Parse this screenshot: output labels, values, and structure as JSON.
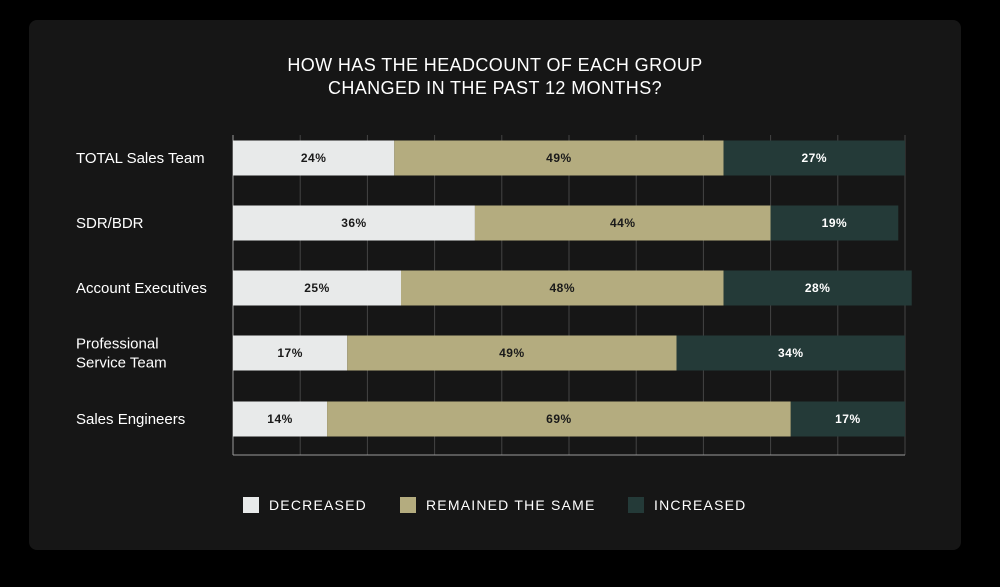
{
  "title_lines": [
    "HOW HAS THE HEADCOUNT OF EACH GROUP",
    "CHANGED IN THE PAST 12 MONTHS?"
  ],
  "colors": {
    "decreased": "#e8eaea",
    "remained": "#b4ac7f",
    "increased": "#243a38",
    "grid": "#444444",
    "label_dark": "#1a1a1a",
    "label_light": "#ffffff"
  },
  "chart_data": {
    "type": "bar",
    "orientation": "horizontal",
    "stacked": true,
    "title": "HOW HAS THE HEADCOUNT OF EACH GROUP CHANGED IN THE PAST 12 MONTHS?",
    "categories": [
      [
        "TOTAL Sales Team"
      ],
      [
        "SDR/BDR"
      ],
      [
        "Account Executives"
      ],
      [
        "Professional",
        "Service Team"
      ],
      [
        "Sales Engineers"
      ]
    ],
    "series": [
      {
        "name": "DECREASED",
        "values": [
          24,
          36,
          25,
          17,
          14
        ],
        "labels": [
          "24%",
          "36%",
          "25%",
          "17%",
          "14%"
        ]
      },
      {
        "name": "REMAINED THE SAME",
        "values": [
          49,
          44,
          48,
          49,
          69
        ],
        "labels": [
          "49%",
          "44%",
          "48%",
          "49%",
          "69%"
        ]
      },
      {
        "name": "INCREASED",
        "values": [
          27,
          19,
          28,
          34,
          17
        ],
        "labels": [
          "27%",
          "19%",
          "28%",
          "34%",
          "17%"
        ]
      }
    ],
    "xlim": [
      0,
      100
    ],
    "grid": true,
    "legend_position": "bottom"
  },
  "legend": [
    {
      "label": "DECREASED",
      "color_key": "decreased"
    },
    {
      "label": "REMAINED THE SAME",
      "color_key": "remained"
    },
    {
      "label": "INCREASED",
      "color_key": "increased"
    }
  ]
}
